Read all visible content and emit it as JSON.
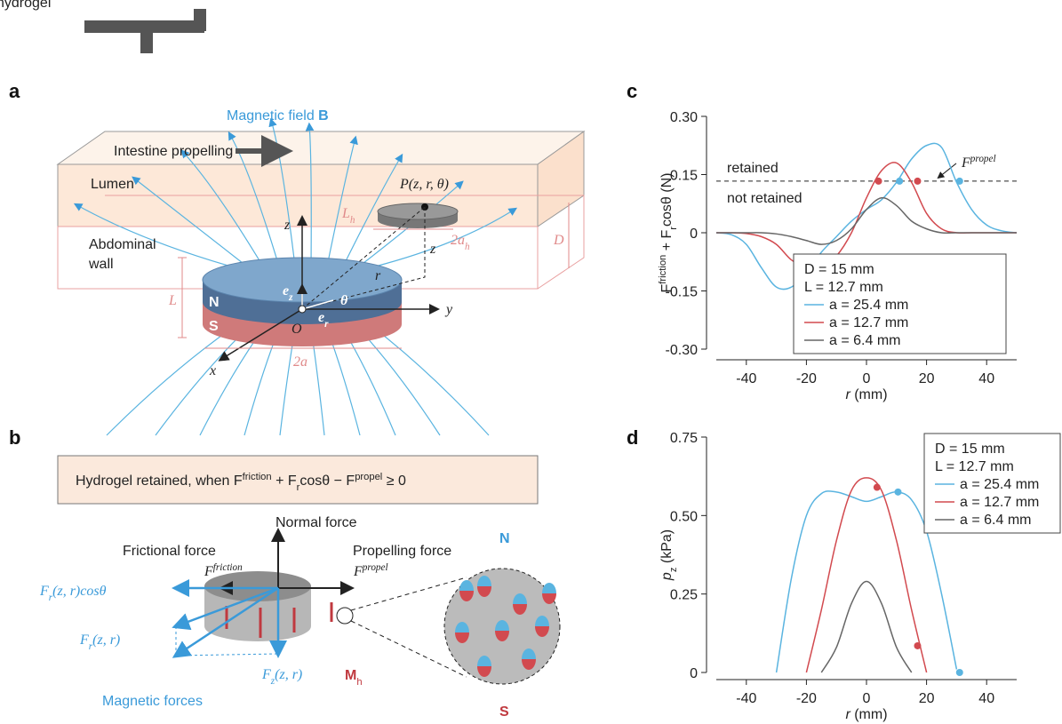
{
  "header": {
    "text": "hydrogel"
  },
  "panel_a": {
    "label": "a",
    "field": {
      "parts": [
        {
          "t": "Magnetic field "
        },
        {
          "t": "B",
          "s": "bold"
        }
      ]
    },
    "propel": "Intestine propelling",
    "lumen": "Lumen",
    "wall": [
      "Abdominal",
      "wall"
    ],
    "point": "P(z, r, θ)",
    "Lh": {
      "parts": [
        {
          "t": "L"
        },
        {
          "t": "h",
          "s": "sub"
        }
      ]
    },
    "ah": {
      "parts": [
        {
          "t": "2a"
        },
        {
          "t": "h",
          "s": "sub"
        }
      ]
    },
    "D": "D",
    "z1": "z",
    "z2": "z",
    "r": "r",
    "L": "L",
    "N": "N",
    "S": "S",
    "ez": {
      "parts": [
        {
          "t": "e"
        },
        {
          "t": "z",
          "s": "sub"
        }
      ]
    },
    "er": {
      "parts": [
        {
          "t": "e"
        },
        {
          "t": "r",
          "s": "sub"
        }
      ]
    },
    "theta": "θ",
    "O": "O",
    "y": "y",
    "x": "x",
    "a2": "2a"
  },
  "panel_b": {
    "label": "b",
    "formula": {
      "parts": [
        {
          "t": "Hydrogel retained, when  "
        },
        {
          "t": "F"
        },
        {
          "t": "friction",
          "s": "sup"
        },
        {
          "t": " + F"
        },
        {
          "t": "r",
          "s": "sub"
        },
        {
          "t": "cosθ − F"
        },
        {
          "t": "propel",
          "s": "sup"
        },
        {
          "t": " ≥ 0"
        }
      ]
    },
    "normal": "Normal force",
    "frictional": "Frictional force",
    "propelling": "Propelling force",
    "Ffric": {
      "parts": [
        {
          "t": "F"
        },
        {
          "t": "friction",
          "s": "sup"
        }
      ]
    },
    "Fprop": {
      "parts": [
        {
          "t": "F"
        },
        {
          "t": "propel",
          "s": "sup"
        }
      ]
    },
    "Frcos": {
      "parts": [
        {
          "t": "F"
        },
        {
          "t": "r",
          "s": "sub"
        },
        {
          "t": "(z, r)cosθ"
        }
      ]
    },
    "Fr": {
      "parts": [
        {
          "t": "F"
        },
        {
          "t": "r",
          "s": "sub"
        },
        {
          "t": "(z, r)"
        }
      ]
    },
    "Fz": {
      "parts": [
        {
          "t": "F"
        },
        {
          "t": "z",
          "s": "sub"
        },
        {
          "t": "(z, r)"
        }
      ]
    },
    "Mh": {
      "parts": [
        {
          "t": "M",
          "s": "bold"
        },
        {
          "t": "h",
          "s": "sub"
        }
      ]
    },
    "magnetic": "Magnetic forces",
    "N": "N",
    "S": "S"
  },
  "chart_data": [
    {
      "type": "line",
      "label": "c",
      "ylabel": {
        "parts": [
          {
            "t": "F"
          },
          {
            "t": "friction",
            "s": "sup"
          },
          {
            "t": " + F"
          },
          {
            "t": "r",
            "s": "sub"
          },
          {
            "t": "cosθ (N)"
          }
        ]
      },
      "xlabel": {
        "parts": [
          {
            "t": "r",
            "s": "ital"
          },
          {
            "t": " (mm)"
          }
        ]
      },
      "x": [
        -50,
        -45,
        -40,
        -35,
        -30,
        -25,
        -20,
        -15,
        -10,
        -5,
        0,
        5,
        10,
        15,
        20,
        25,
        30,
        35,
        40,
        45,
        50
      ],
      "xlim": [
        -50,
        50
      ],
      "xticks": [
        -40,
        -20,
        0,
        20,
        40
      ],
      "ylim": [
        -0.3,
        0.3
      ],
      "yticks": [
        {
          "value": -0.3,
          "label": "-0.30"
        },
        -0.15,
        0,
        0.15,
        {
          "value": 0.3,
          "label": "0.30"
        }
      ],
      "hline": 0.133,
      "annotations": {
        "above": "retained",
        "below": "not retained",
        "line": {
          "parts": [
            {
              "t": "F"
            },
            {
              "t": "propel",
              "s": "sup"
            }
          ]
        }
      },
      "legend_notes": [
        "D = 15 mm",
        "L = 12.7 mm"
      ],
      "series": [
        {
          "name": "a = 25.4 mm",
          "color": "#5ab4e0",
          "values": [
            0,
            -0.005,
            -0.03,
            -0.09,
            -0.14,
            -0.14,
            -0.1,
            -0.05,
            -0.01,
            0.03,
            0.06,
            0.085,
            0.13,
            0.19,
            0.225,
            0.22,
            0.13,
            0.06,
            0.02,
            0.005,
            0
          ],
          "points": {
            "x": [
              11,
              31
            ],
            "y": [
              0.133,
              0.133
            ]
          }
        },
        {
          "name": "a = 12.7 mm",
          "color": "#d24a4f",
          "values": [
            0,
            0,
            -0.002,
            -0.01,
            -0.03,
            -0.07,
            -0.09,
            -0.09,
            -0.06,
            0,
            0.09,
            0.16,
            0.18,
            0.13,
            0.05,
            0.01,
            0,
            0,
            0,
            0,
            0
          ],
          "points": {
            "x": [
              4,
              17
            ],
            "y": [
              0.133,
              0.133
            ]
          }
        },
        {
          "name": "a = 6.4 mm",
          "color": "#666666",
          "values": [
            0,
            0,
            0,
            0,
            -0.003,
            -0.01,
            -0.02,
            -0.03,
            -0.02,
            0.01,
            0.06,
            0.09,
            0.07,
            0.03,
            0.01,
            0,
            0,
            0,
            0,
            0,
            0
          ]
        }
      ]
    },
    {
      "type": "line",
      "label": "d",
      "ylabel": {
        "parts": [
          {
            "t": "p",
            "s": "ital"
          },
          {
            "t": "z",
            "s": "sub"
          },
          {
            "t": " (kPa)"
          }
        ]
      },
      "xlabel": {
        "parts": [
          {
            "t": "r",
            "s": "ital"
          },
          {
            "t": " (mm)"
          }
        ]
      },
      "x": [
        -50,
        -45,
        -40,
        -35,
        -30,
        -25,
        -20,
        -15,
        -10,
        -5,
        0,
        5,
        10,
        15,
        20,
        25,
        30,
        35,
        40,
        45,
        50
      ],
      "xlim": [
        -50,
        50
      ],
      "xticks": [
        -40,
        -20,
        0,
        20,
        40
      ],
      "ylim": [
        0,
        0.75
      ],
      "yticks": [
        0,
        0.25,
        {
          "value": 0.5,
          "label": "0.50"
        },
        0.75
      ],
      "legend_notes": [
        "D = 15 mm",
        "L = 12.7 mm"
      ],
      "series": [
        {
          "name": "a = 25.4 mm",
          "color": "#5ab4e0",
          "values": [
            null,
            null,
            null,
            null,
            0,
            0.3,
            0.5,
            0.57,
            0.575,
            0.56,
            0.545,
            0.56,
            0.575,
            0.55,
            0.45,
            0.25,
            0.01,
            null,
            null,
            null,
            null
          ],
          "points": {
            "x": [
              10.5,
              31
            ],
            "y": [
              0.575,
              0
            ]
          }
        },
        {
          "name": "a = 12.7 mm",
          "color": "#d24a4f",
          "values": [
            null,
            null,
            null,
            null,
            null,
            null,
            0,
            0.2,
            0.42,
            0.58,
            0.62,
            0.58,
            0.42,
            0.2,
            0,
            null,
            null,
            null,
            null,
            null,
            null
          ],
          "points": {
            "x": [
              3.5,
              17
            ],
            "y": [
              0.59,
              0.085
            ]
          }
        },
        {
          "name": "a = 6.4 mm",
          "color": "#666666",
          "values": [
            null,
            null,
            null,
            null,
            null,
            null,
            null,
            0,
            0.08,
            0.22,
            0.29,
            0.22,
            0.08,
            0,
            null,
            null,
            null,
            null,
            null,
            null,
            null
          ]
        }
      ]
    }
  ]
}
